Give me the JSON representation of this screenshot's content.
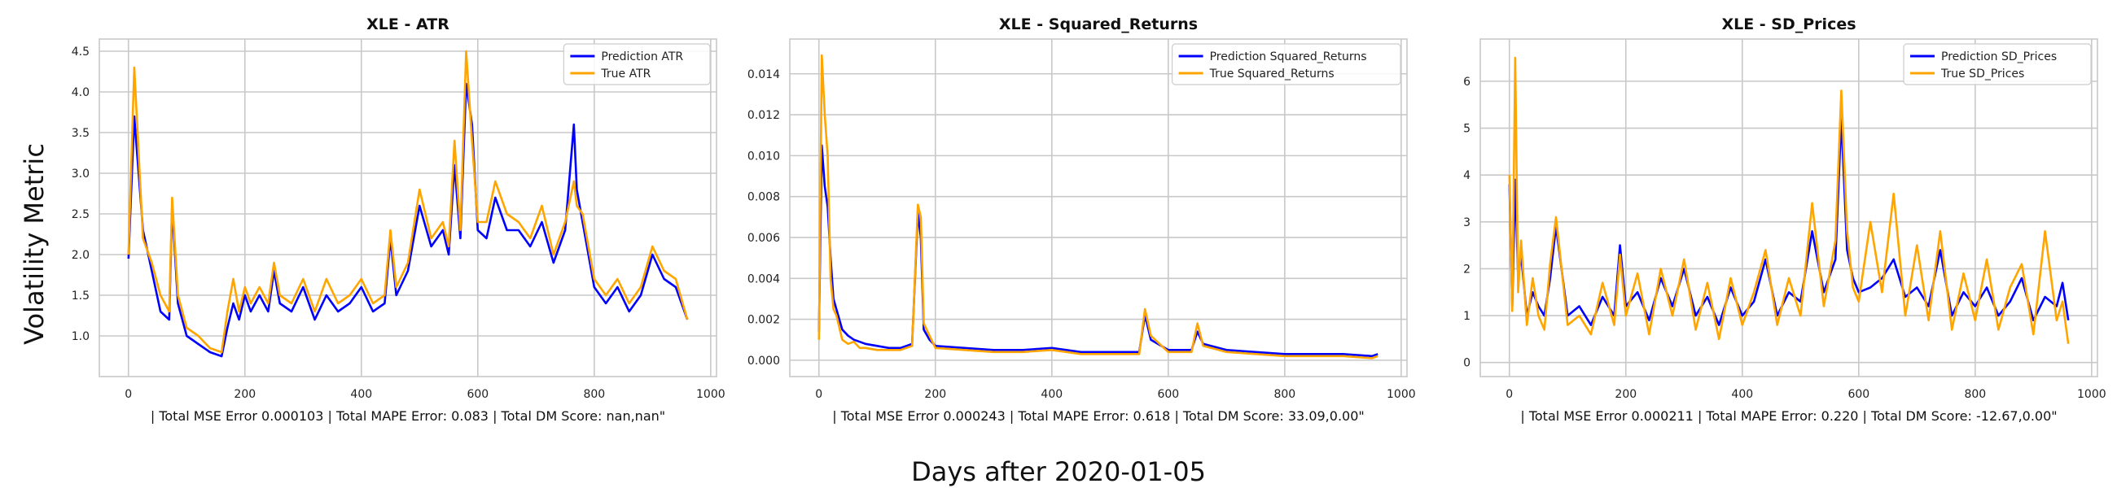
{
  "figure": {
    "ylabel": "Volatility Metric",
    "xlabel": "Days after 2020-01-05"
  },
  "chart_data": [
    {
      "type": "line",
      "title": "XLE - ATR",
      "xlabel": "| Total MSE Error 0.000103 | Total MAPE Error: 0.083 | Total DM Score: nan,nan\"",
      "ylabel": "",
      "xlim": [
        -50,
        1010
      ],
      "ylim": [
        0.5,
        4.65
      ],
      "xticks": [
        0,
        200,
        400,
        600,
        800,
        1000
      ],
      "yticks": [
        1.0,
        1.5,
        2.0,
        2.5,
        3.0,
        3.5,
        4.0,
        4.5
      ],
      "ytick_labels": [
        "1.0",
        "1.5",
        "2.0",
        "2.5",
        "3.0",
        "3.5",
        "4.0",
        "4.5"
      ],
      "grid": true,
      "legend": "top-right",
      "colors": [
        "#0000ff",
        "#ffa500"
      ],
      "series": [
        {
          "name": "Prediction ATR",
          "x": [
            0,
            10,
            25,
            40,
            55,
            70,
            75,
            85,
            100,
            120,
            140,
            160,
            170,
            180,
            190,
            200,
            210,
            225,
            240,
            250,
            260,
            280,
            300,
            320,
            340,
            360,
            380,
            400,
            420,
            440,
            450,
            460,
            480,
            500,
            520,
            540,
            550,
            560,
            570,
            580,
            590,
            600,
            615,
            630,
            650,
            670,
            690,
            710,
            730,
            750,
            765,
            770,
            780,
            800,
            820,
            840,
            860,
            880,
            900,
            920,
            940,
            960
          ],
          "values": [
            1.95,
            3.7,
            2.3,
            1.8,
            1.3,
            1.2,
            2.6,
            1.4,
            1.0,
            0.9,
            0.8,
            0.75,
            1.1,
            1.4,
            1.2,
            1.5,
            1.3,
            1.5,
            1.3,
            1.8,
            1.4,
            1.3,
            1.6,
            1.2,
            1.5,
            1.3,
            1.4,
            1.6,
            1.3,
            1.4,
            2.2,
            1.5,
            1.8,
            2.6,
            2.1,
            2.3,
            2.0,
            3.1,
            2.2,
            4.1,
            3.6,
            2.3,
            2.2,
            2.7,
            2.3,
            2.3,
            2.1,
            2.4,
            1.9,
            2.3,
            3.6,
            2.8,
            2.4,
            1.6,
            1.4,
            1.6,
            1.3,
            1.5,
            2.0,
            1.7,
            1.6,
            1.2
          ]
        },
        {
          "name": "True ATR",
          "x": [
            0,
            10,
            25,
            40,
            55,
            70,
            75,
            85,
            100,
            120,
            140,
            160,
            170,
            180,
            190,
            200,
            210,
            225,
            240,
            250,
            260,
            280,
            300,
            320,
            340,
            360,
            380,
            400,
            420,
            440,
            450,
            460,
            480,
            500,
            520,
            540,
            550,
            560,
            570,
            580,
            590,
            600,
            615,
            630,
            650,
            670,
            690,
            710,
            730,
            750,
            765,
            770,
            780,
            800,
            820,
            840,
            860,
            880,
            900,
            920,
            940,
            960
          ],
          "values": [
            2.0,
            4.3,
            2.2,
            1.9,
            1.5,
            1.3,
            2.7,
            1.5,
            1.1,
            1.0,
            0.85,
            0.8,
            1.3,
            1.7,
            1.3,
            1.6,
            1.4,
            1.6,
            1.4,
            1.9,
            1.5,
            1.4,
            1.7,
            1.3,
            1.7,
            1.4,
            1.5,
            1.7,
            1.4,
            1.5,
            2.3,
            1.6,
            1.9,
            2.8,
            2.2,
            2.4,
            2.1,
            3.4,
            2.3,
            4.5,
            3.4,
            2.4,
            2.4,
            2.9,
            2.5,
            2.4,
            2.2,
            2.6,
            2.0,
            2.4,
            2.9,
            2.6,
            2.5,
            1.7,
            1.5,
            1.7,
            1.4,
            1.6,
            2.1,
            1.8,
            1.7,
            1.2
          ]
        }
      ]
    },
    {
      "type": "line",
      "title": "XLE - Squared_Returns",
      "xlabel": "| Total MSE Error 0.000243 | Total MAPE Error: 0.618 | Total DM Score: 33.09,0.00\"",
      "ylabel": "",
      "xlim": [
        -50,
        1010
      ],
      "ylim": [
        -0.0008,
        0.0157
      ],
      "xticks": [
        0,
        200,
        400,
        600,
        800,
        1000
      ],
      "yticks": [
        0.0,
        0.002,
        0.004,
        0.006,
        0.008,
        0.01,
        0.012,
        0.014
      ],
      "ytick_labels": [
        "0.000",
        "0.002",
        "0.004",
        "0.006",
        "0.008",
        "0.010",
        "0.012",
        "0.014"
      ],
      "grid": true,
      "legend": "top-right",
      "colors": [
        "#0000ff",
        "#ffa500"
      ],
      "series": [
        {
          "name": "Prediction Squared_Returns",
          "x": [
            0,
            5,
            10,
            15,
            20,
            25,
            30,
            40,
            50,
            60,
            70,
            80,
            100,
            120,
            140,
            160,
            170,
            175,
            180,
            190,
            200,
            250,
            300,
            350,
            400,
            450,
            500,
            550,
            560,
            570,
            600,
            640,
            650,
            660,
            700,
            750,
            800,
            850,
            900,
            950,
            960
          ],
          "values": [
            0.0014,
            0.0105,
            0.0085,
            0.0075,
            0.005,
            0.003,
            0.0025,
            0.0015,
            0.0012,
            0.001,
            0.0009,
            0.0008,
            0.0007,
            0.0006,
            0.0006,
            0.0008,
            0.0072,
            0.006,
            0.0015,
            0.001,
            0.0007,
            0.0006,
            0.0005,
            0.0005,
            0.0006,
            0.0004,
            0.0004,
            0.0004,
            0.0022,
            0.001,
            0.0005,
            0.0005,
            0.0014,
            0.0008,
            0.0005,
            0.0004,
            0.0003,
            0.0003,
            0.0003,
            0.0002,
            0.0003
          ]
        },
        {
          "name": "True Squared_Returns",
          "x": [
            0,
            5,
            10,
            15,
            20,
            25,
            30,
            40,
            50,
            60,
            70,
            80,
            100,
            120,
            140,
            160,
            170,
            175,
            180,
            190,
            200,
            250,
            300,
            350,
            400,
            450,
            500,
            550,
            560,
            570,
            600,
            640,
            650,
            660,
            700,
            750,
            800,
            850,
            900,
            950,
            960
          ],
          "values": [
            0.001,
            0.0149,
            0.012,
            0.01,
            0.004,
            0.0025,
            0.0022,
            0.001,
            0.0008,
            0.0009,
            0.0006,
            0.0006,
            0.0005,
            0.0005,
            0.0005,
            0.0007,
            0.0076,
            0.007,
            0.0018,
            0.0012,
            0.0006,
            0.0005,
            0.0004,
            0.0004,
            0.0005,
            0.0003,
            0.0003,
            0.0003,
            0.0025,
            0.0012,
            0.0004,
            0.0004,
            0.0018,
            0.0007,
            0.0004,
            0.0003,
            0.0002,
            0.0002,
            0.0002,
            0.0001,
            0.0002
          ]
        }
      ]
    },
    {
      "type": "line",
      "title": "XLE - SD_Prices",
      "xlabel": "| Total MSE Error 0.000211 | Total MAPE Error: 0.220 | Total DM Score: -12.67,0.00\"",
      "ylabel": "",
      "xlim": [
        -50,
        1010
      ],
      "ylim": [
        -0.3,
        6.9
      ],
      "xticks": [
        0,
        200,
        400,
        600,
        800,
        1000
      ],
      "yticks": [
        0,
        1,
        2,
        3,
        4,
        5,
        6
      ],
      "ytick_labels": [
        "0",
        "1",
        "2",
        "3",
        "4",
        "5",
        "6"
      ],
      "grid": true,
      "legend": "top-right",
      "colors": [
        "#0000ff",
        "#ffa500"
      ],
      "series": [
        {
          "name": "Prediction SD_Prices",
          "x": [
            0,
            5,
            10,
            15,
            20,
            30,
            40,
            50,
            60,
            70,
            80,
            100,
            120,
            140,
            160,
            180,
            190,
            200,
            220,
            240,
            260,
            280,
            300,
            320,
            340,
            360,
            380,
            400,
            420,
            440,
            460,
            480,
            500,
            520,
            540,
            560,
            570,
            580,
            590,
            600,
            620,
            640,
            660,
            680,
            700,
            720,
            740,
            760,
            780,
            800,
            820,
            840,
            860,
            880,
            900,
            920,
            940,
            950,
            960
          ],
          "values": [
            3.8,
            1.2,
            3.9,
            1.8,
            2.3,
            1.0,
            1.5,
            1.2,
            1.0,
            1.8,
            2.9,
            1.0,
            1.2,
            0.8,
            1.4,
            1.0,
            2.5,
            1.2,
            1.5,
            0.9,
            1.8,
            1.2,
            2.0,
            1.0,
            1.4,
            0.8,
            1.6,
            1.0,
            1.3,
            2.2,
            1.0,
            1.5,
            1.3,
            2.8,
            1.5,
            2.2,
            5.2,
            2.4,
            1.8,
            1.5,
            1.6,
            1.8,
            2.2,
            1.4,
            1.6,
            1.2,
            2.4,
            1.0,
            1.5,
            1.2,
            1.6,
            1.0,
            1.3,
            1.8,
            0.9,
            1.4,
            1.2,
            1.7,
            0.9
          ]
        },
        {
          "name": "True SD_Prices",
          "x": [
            0,
            5,
            10,
            15,
            20,
            30,
            40,
            50,
            60,
            70,
            80,
            100,
            120,
            140,
            160,
            180,
            190,
            200,
            220,
            240,
            260,
            280,
            300,
            320,
            340,
            360,
            380,
            400,
            420,
            440,
            460,
            480,
            500,
            520,
            540,
            560,
            570,
            580,
            590,
            600,
            620,
            640,
            660,
            680,
            700,
            720,
            740,
            760,
            780,
            800,
            820,
            840,
            860,
            880,
            900,
            920,
            940,
            950,
            960
          ],
          "values": [
            4.0,
            1.1,
            6.5,
            1.5,
            2.6,
            0.8,
            1.8,
            1.0,
            0.7,
            2.1,
            3.1,
            0.8,
            1.0,
            0.6,
            1.7,
            0.8,
            2.3,
            1.0,
            1.9,
            0.6,
            2.0,
            1.0,
            2.2,
            0.7,
            1.7,
            0.5,
            1.8,
            0.8,
            1.5,
            2.4,
            0.8,
            1.8,
            1.0,
            3.4,
            1.2,
            2.6,
            5.8,
            2.8,
            1.6,
            1.3,
            3.0,
            1.5,
            3.6,
            1.0,
            2.5,
            0.9,
            2.8,
            0.7,
            1.9,
            0.9,
            2.2,
            0.7,
            1.6,
            2.1,
            0.6,
            2.8,
            0.9,
            1.3,
            0.4
          ]
        }
      ]
    }
  ]
}
